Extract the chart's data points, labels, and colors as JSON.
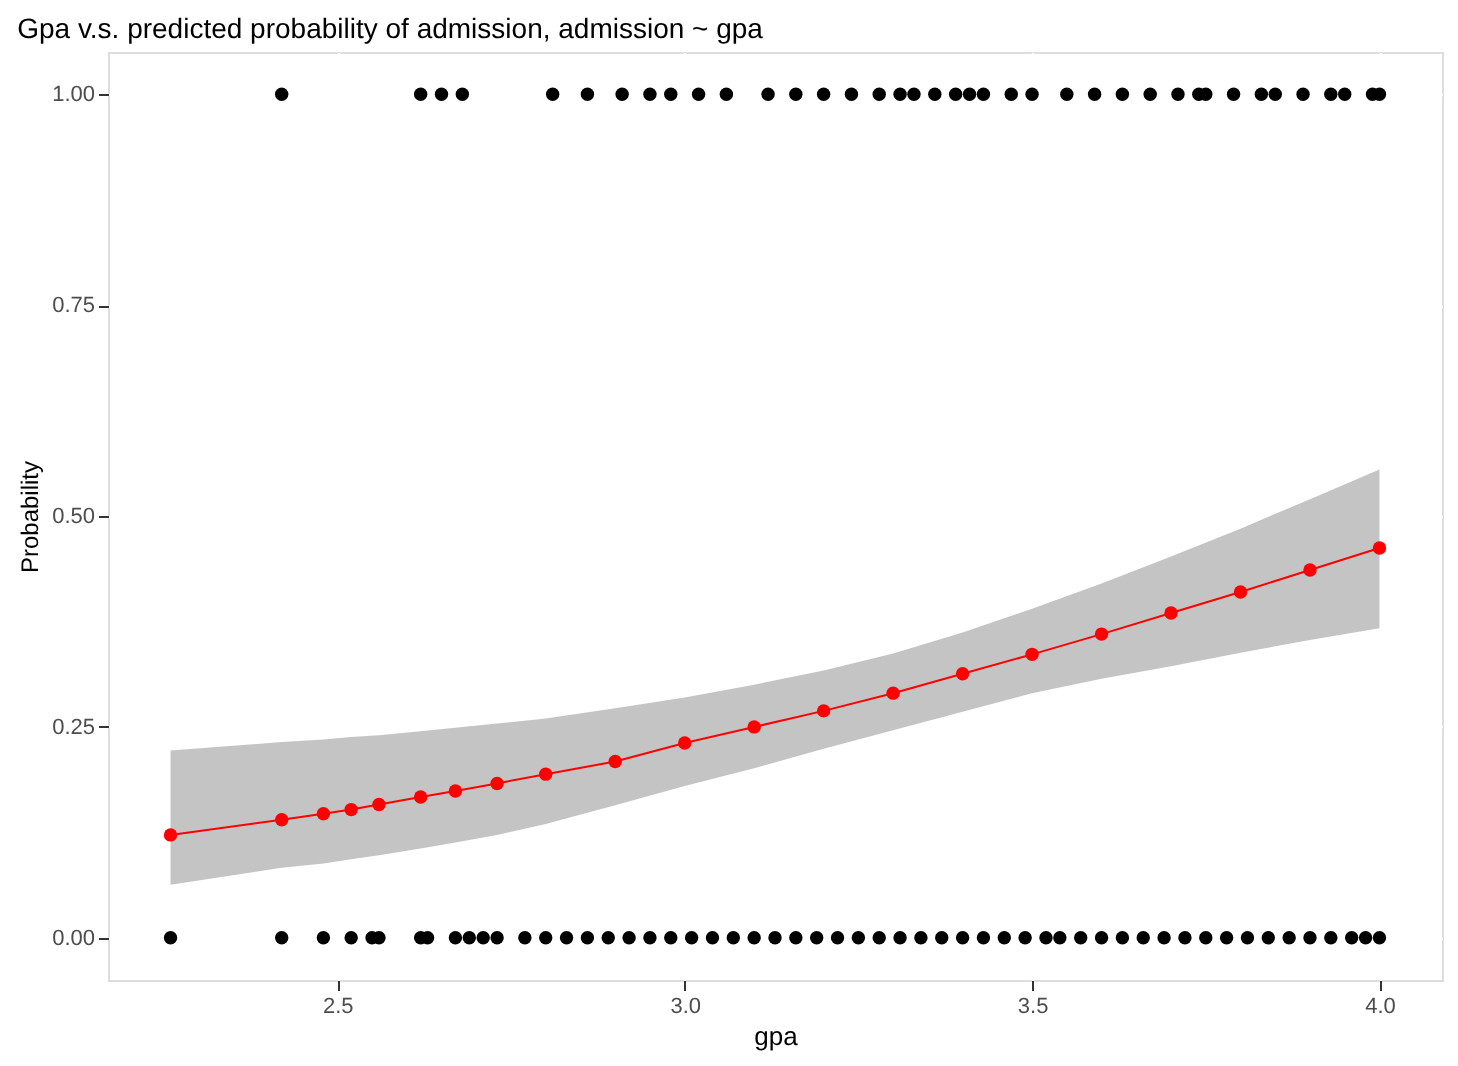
{
  "chart_data": {
    "type": "scatter",
    "title": "Gpa v.s. predicted probability of admission, admission ~ gpa",
    "xlabel": "gpa",
    "ylabel": "Probability",
    "xlim": [
      2.17,
      4.09
    ],
    "ylim": [
      -0.05,
      1.05
    ],
    "xticks": [
      2.5,
      {
        "value": 3,
        "label": "3.0"
      },
      3.5,
      {
        "value": 4,
        "label": "4.0"
      }
    ],
    "yticks": [
      {
        "value": 0,
        "label": "0.00"
      },
      {
        "value": 0.25,
        "label": "0.25"
      },
      {
        "value": 0.5,
        "label": "0.50"
      },
      {
        "value": 0.75,
        "label": "0.75"
      },
      {
        "value": 1,
        "label": "1.00"
      }
    ],
    "grid": true,
    "marker": "circle",
    "line_style": "solid",
    "series": [
      {
        "color": "#000000",
        "x": [
          2.42,
          2.62,
          2.65,
          2.68,
          2.81,
          2.86,
          2.91,
          2.95,
          2.98,
          3.02,
          3.06,
          3.12,
          3.16,
          3.2,
          3.24,
          3.28,
          3.31,
          3.33,
          3.36,
          3.39,
          3.41,
          3.43,
          3.47,
          3.5,
          3.55,
          3.59,
          3.63,
          3.67,
          3.71,
          3.74,
          3.75,
          3.79,
          3.83,
          3.85,
          3.89,
          3.93,
          3.95,
          3.99,
          4.0
        ],
        "values": [
          1,
          1,
          1,
          1,
          1,
          1,
          1,
          1,
          1,
          1,
          1,
          1,
          1,
          1,
          1,
          1,
          1,
          1,
          1,
          1,
          1,
          1,
          1,
          1,
          1,
          1,
          1,
          1,
          1,
          1,
          1,
          1,
          1,
          1,
          1,
          1,
          1,
          1,
          1
        ]
      },
      {
        "color": "#000000",
        "x": [
          2.26,
          2.42,
          2.48,
          2.52,
          2.55,
          2.56,
          2.62,
          2.63,
          2.67,
          2.69,
          2.71,
          2.73,
          2.77,
          2.8,
          2.83,
          2.86,
          2.89,
          2.92,
          2.95,
          2.98,
          3.01,
          3.04,
          3.07,
          3.1,
          3.13,
          3.16,
          3.19,
          3.22,
          3.25,
          3.28,
          3.31,
          3.34,
          3.37,
          3.4,
          3.43,
          3.46,
          3.49,
          3.52,
          3.54,
          3.57,
          3.6,
          3.63,
          3.66,
          3.69,
          3.72,
          3.75,
          3.78,
          3.81,
          3.84,
          3.87,
          3.9,
          3.93,
          3.96,
          3.98,
          4.0
        ],
        "values": [
          0,
          0,
          0,
          0,
          0,
          0,
          0,
          0,
          0,
          0,
          0,
          0,
          0,
          0,
          0,
          0,
          0,
          0,
          0,
          0,
          0,
          0,
          0,
          0,
          0,
          0,
          0,
          0,
          0,
          0,
          0,
          0,
          0,
          0,
          0,
          0,
          0,
          0,
          0,
          0,
          0,
          0,
          0,
          0,
          0,
          0,
          0,
          0,
          0,
          0,
          0,
          0,
          0,
          0,
          0
        ]
      },
      {
        "type": "line",
        "color": "#ff0000",
        "x": [
          2.26,
          2.42,
          2.48,
          2.52,
          2.56,
          2.62,
          2.67,
          2.73,
          2.8,
          2.9,
          3.0,
          3.1,
          3.2,
          3.3,
          3.4,
          3.5,
          3.6,
          3.7,
          3.8,
          3.9,
          4.0
        ],
        "values": [
          0.122,
          0.14,
          0.147,
          0.152,
          0.158,
          0.167,
          0.174,
          0.183,
          0.194,
          0.209,
          0.231,
          0.25,
          0.269,
          0.29,
          0.313,
          0.336,
          0.36,
          0.385,
          0.41,
          0.436,
          0.462
        ],
        "lower": [
          0.063,
          0.083,
          0.088,
          0.093,
          0.098,
          0.106,
          0.113,
          0.122,
          0.135,
          0.157,
          0.18,
          0.201,
          0.224,
          0.246,
          0.268,
          0.29,
          0.307,
          0.322,
          0.338,
          0.353,
          0.367
        ],
        "upper": [
          0.222,
          0.232,
          0.235,
          0.238,
          0.24,
          0.245,
          0.249,
          0.254,
          0.26,
          0.272,
          0.285,
          0.3,
          0.317,
          0.337,
          0.362,
          0.39,
          0.42,
          0.452,
          0.485,
          0.52,
          0.555
        ]
      }
    ]
  }
}
